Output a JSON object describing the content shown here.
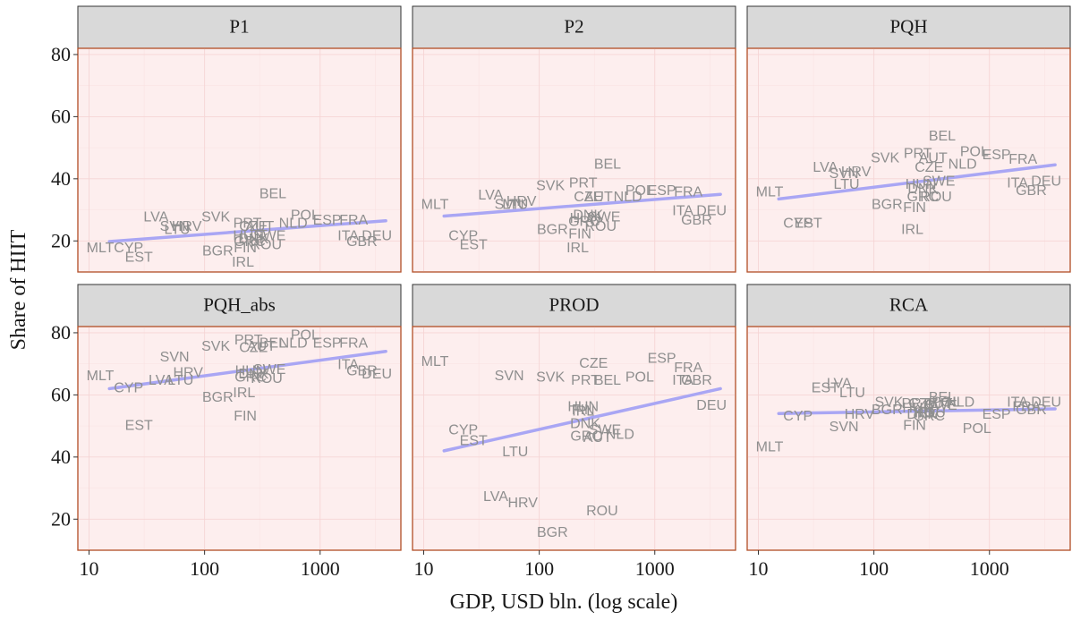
{
  "chart_data": {
    "type": "scatter",
    "layout": "facet-grid-2x3",
    "xlabel": "GDP, USD bln. (log scale)",
    "ylabel": "Share of HIIT",
    "x_scale": "log10",
    "xlim": [
      8,
      5000
    ],
    "ylim": [
      10,
      82
    ],
    "x_ticks": [
      10,
      100,
      1000
    ],
    "x_tick_labels": [
      "10",
      "100",
      "1000"
    ],
    "y_ticks": [
      20,
      40,
      60,
      80
    ],
    "y_tick_labels": [
      "20",
      "40",
      "60",
      "80"
    ],
    "grid": true,
    "point_style": "text-label",
    "panels": [
      {
        "facet": "P1",
        "trend": {
          "x": [
            15,
            3700
          ],
          "y": [
            19.8,
            26.5
          ]
        },
        "points": [
          {
            "label": "MLT",
            "x": 12.5,
            "y": 17.5
          },
          {
            "label": "CYP",
            "x": 22,
            "y": 17.5
          },
          {
            "label": "EST",
            "x": 27,
            "y": 14.5
          },
          {
            "label": "LVA",
            "x": 38,
            "y": 27.5
          },
          {
            "label": "SVN",
            "x": 55,
            "y": 24.5
          },
          {
            "label": "HRV",
            "x": 70,
            "y": 24.5
          },
          {
            "label": "LTU",
            "x": 58,
            "y": 23.5
          },
          {
            "label": "SVK",
            "x": 125,
            "y": 27.5
          },
          {
            "label": "BGR",
            "x": 130,
            "y": 16.5
          },
          {
            "label": "PRT",
            "x": 235,
            "y": 25.5
          },
          {
            "label": "CZE",
            "x": 265,
            "y": 24.5
          },
          {
            "label": "AUT",
            "x": 300,
            "y": 24.5
          },
          {
            "label": "HUN",
            "x": 240,
            "y": 21.5
          },
          {
            "label": "DNK",
            "x": 265,
            "y": 20.5
          },
          {
            "label": "GRC",
            "x": 245,
            "y": 19.5
          },
          {
            "label": "FIN",
            "x": 225,
            "y": 17.5
          },
          {
            "label": "IRL",
            "x": 215,
            "y": 13
          },
          {
            "label": "SWE",
            "x": 365,
            "y": 21.5
          },
          {
            "label": "ROU",
            "x": 340,
            "y": 18.5
          },
          {
            "label": "BEL",
            "x": 390,
            "y": 35
          },
          {
            "label": "NLD",
            "x": 585,
            "y": 25.5
          },
          {
            "label": "POL",
            "x": 740,
            "y": 28
          },
          {
            "label": "ESP",
            "x": 1150,
            "y": 26.5
          },
          {
            "label": "FRA",
            "x": 1950,
            "y": 26.5
          },
          {
            "label": "ITA",
            "x": 1750,
            "y": 21.5
          },
          {
            "label": "DEU",
            "x": 3100,
            "y": 21.5
          },
          {
            "label": "GBR",
            "x": 2300,
            "y": 19.5
          }
        ]
      },
      {
        "facet": "P2",
        "trend": {
          "x": [
            15,
            3700
          ],
          "y": [
            28,
            35
          ]
        },
        "points": [
          {
            "label": "MLT",
            "x": 12.5,
            "y": 31.5
          },
          {
            "label": "CYP",
            "x": 22,
            "y": 21.5
          },
          {
            "label": "EST",
            "x": 27,
            "y": 18.5
          },
          {
            "label": "LVA",
            "x": 38,
            "y": 34.5
          },
          {
            "label": "SVN",
            "x": 55,
            "y": 31.5
          },
          {
            "label": "HRV",
            "x": 70,
            "y": 32.5
          },
          {
            "label": "LTU",
            "x": 62,
            "y": 31.5
          },
          {
            "label": "SVK",
            "x": 125,
            "y": 37.5
          },
          {
            "label": "PRT",
            "x": 240,
            "y": 38.5
          },
          {
            "label": "BEL",
            "x": 390,
            "y": 44.5
          },
          {
            "label": "CZE",
            "x": 265,
            "y": 34
          },
          {
            "label": "AUT",
            "x": 325,
            "y": 34
          },
          {
            "label": "NLD",
            "x": 585,
            "y": 34
          },
          {
            "label": "POL",
            "x": 740,
            "y": 36
          },
          {
            "label": "ESP",
            "x": 1150,
            "y": 36
          },
          {
            "label": "FRA",
            "x": 1950,
            "y": 35.5
          },
          {
            "label": "BGR",
            "x": 130,
            "y": 23.5
          },
          {
            "label": "DNK",
            "x": 265,
            "y": 28
          },
          {
            "label": "HUN",
            "x": 250,
            "y": 27
          },
          {
            "label": "GRC",
            "x": 245,
            "y": 26
          },
          {
            "label": "SWE",
            "x": 365,
            "y": 27.5
          },
          {
            "label": "ROU",
            "x": 340,
            "y": 24.5
          },
          {
            "label": "FIN",
            "x": 225,
            "y": 22
          },
          {
            "label": "IRL",
            "x": 215,
            "y": 17.5
          },
          {
            "label": "ITA",
            "x": 1750,
            "y": 29.5
          },
          {
            "label": "DEU",
            "x": 3100,
            "y": 29.5
          },
          {
            "label": "GBR",
            "x": 2300,
            "y": 26.5
          }
        ]
      },
      {
        "facet": "PQH",
        "trend": {
          "x": [
            15,
            3700
          ],
          "y": [
            33.5,
            44.5
          ]
        },
        "points": [
          {
            "label": "MLT",
            "x": 12.5,
            "y": 35.5
          },
          {
            "label": "CYP",
            "x": 22,
            "y": 25.5
          },
          {
            "label": "EST",
            "x": 27,
            "y": 25.5
          },
          {
            "label": "LVA",
            "x": 38,
            "y": 43.5
          },
          {
            "label": "SVN",
            "x": 55,
            "y": 41.5
          },
          {
            "label": "HRV",
            "x": 70,
            "y": 42
          },
          {
            "label": "LTU",
            "x": 58,
            "y": 38
          },
          {
            "label": "SVK",
            "x": 125,
            "y": 46.5
          },
          {
            "label": "PRT",
            "x": 240,
            "y": 48
          },
          {
            "label": "AUT",
            "x": 325,
            "y": 46.5
          },
          {
            "label": "BEL",
            "x": 390,
            "y": 53.5
          },
          {
            "label": "CZE",
            "x": 300,
            "y": 43.5
          },
          {
            "label": "NLD",
            "x": 585,
            "y": 44.5
          },
          {
            "label": "POL",
            "x": 740,
            "y": 48.5
          },
          {
            "label": "ESP",
            "x": 1150,
            "y": 47.5
          },
          {
            "label": "FRA",
            "x": 1950,
            "y": 46
          },
          {
            "label": "HUN",
            "x": 255,
            "y": 38
          },
          {
            "label": "SWE",
            "x": 365,
            "y": 39
          },
          {
            "label": "DNK",
            "x": 265,
            "y": 36.5
          },
          {
            "label": "GRC",
            "x": 265,
            "y": 34
          },
          {
            "label": "ROU",
            "x": 345,
            "y": 34
          },
          {
            "label": "BGR",
            "x": 130,
            "y": 31.5
          },
          {
            "label": "FIN",
            "x": 225,
            "y": 30.5
          },
          {
            "label": "IRL",
            "x": 215,
            "y": 23.5
          },
          {
            "label": "ITA",
            "x": 1750,
            "y": 38.5
          },
          {
            "label": "DEU",
            "x": 3100,
            "y": 39
          },
          {
            "label": "GBR",
            "x": 2300,
            "y": 36
          }
        ]
      },
      {
        "facet": "PQH_abs",
        "trend": {
          "x": [
            15,
            3700
          ],
          "y": [
            62,
            74
          ]
        },
        "points": [
          {
            "label": "MLT",
            "x": 12.5,
            "y": 66
          },
          {
            "label": "CYP",
            "x": 22,
            "y": 62
          },
          {
            "label": "EST",
            "x": 27,
            "y": 50
          },
          {
            "label": "SVN",
            "x": 55,
            "y": 72
          },
          {
            "label": "LVA",
            "x": 42,
            "y": 64.5
          },
          {
            "label": "LTU",
            "x": 62,
            "y": 64.5
          },
          {
            "label": "HRV",
            "x": 72,
            "y": 67
          },
          {
            "label": "BGR",
            "x": 130,
            "y": 59
          },
          {
            "label": "SVK",
            "x": 125,
            "y": 75.5
          },
          {
            "label": "PRT",
            "x": 240,
            "y": 77.5
          },
          {
            "label": "CZE",
            "x": 265,
            "y": 75
          },
          {
            "label": "AUT",
            "x": 310,
            "y": 75.5
          },
          {
            "label": "BEL",
            "x": 390,
            "y": 76.5
          },
          {
            "label": "NLD",
            "x": 585,
            "y": 76.5
          },
          {
            "label": "POL",
            "x": 740,
            "y": 79
          },
          {
            "label": "ESP",
            "x": 1150,
            "y": 76.5
          },
          {
            "label": "FRA",
            "x": 1950,
            "y": 76.5
          },
          {
            "label": "HUN",
            "x": 250,
            "y": 67.5
          },
          {
            "label": "DNK",
            "x": 265,
            "y": 66.5
          },
          {
            "label": "SWE",
            "x": 365,
            "y": 68
          },
          {
            "label": "GRC",
            "x": 250,
            "y": 65.5
          },
          {
            "label": "ROU",
            "x": 345,
            "y": 65
          },
          {
            "label": "IRL",
            "x": 220,
            "y": 60.5
          },
          {
            "label": "FIN",
            "x": 225,
            "y": 53
          },
          {
            "label": "ITA",
            "x": 1750,
            "y": 69.5
          },
          {
            "label": "GBR",
            "x": 2300,
            "y": 67.5
          },
          {
            "label": "DEU",
            "x": 3100,
            "y": 66.5
          }
        ]
      },
      {
        "facet": "PROD",
        "trend": {
          "x": [
            15,
            3700
          ],
          "y": [
            42,
            62
          ]
        },
        "points": [
          {
            "label": "MLT",
            "x": 12.5,
            "y": 70.5
          },
          {
            "label": "CYP",
            "x": 22,
            "y": 48.5
          },
          {
            "label": "EST",
            "x": 27,
            "y": 45
          },
          {
            "label": "LTU",
            "x": 62,
            "y": 41.5
          },
          {
            "label": "LVA",
            "x": 42,
            "y": 27
          },
          {
            "label": "HRV",
            "x": 72,
            "y": 25
          },
          {
            "label": "BGR",
            "x": 130,
            "y": 15.5
          },
          {
            "label": "ROU",
            "x": 350,
            "y": 22.5
          },
          {
            "label": "SVN",
            "x": 55,
            "y": 66
          },
          {
            "label": "SVK",
            "x": 125,
            "y": 65.5
          },
          {
            "label": "CZE",
            "x": 295,
            "y": 70
          },
          {
            "label": "PRT",
            "x": 250,
            "y": 64.5
          },
          {
            "label": "BEL",
            "x": 390,
            "y": 64.5
          },
          {
            "label": "POL",
            "x": 740,
            "y": 65.5
          },
          {
            "label": "ESP",
            "x": 1150,
            "y": 71.5
          },
          {
            "label": "FRA",
            "x": 1950,
            "y": 68.5
          },
          {
            "label": "ITA",
            "x": 1750,
            "y": 64.5
          },
          {
            "label": "GBR",
            "x": 2300,
            "y": 64.5
          },
          {
            "label": "DEU",
            "x": 3100,
            "y": 56.5
          },
          {
            "label": "HUN",
            "x": 240,
            "y": 56
          },
          {
            "label": "FIN",
            "x": 240,
            "y": 55
          },
          {
            "label": "IRL",
            "x": 240,
            "y": 54.5
          },
          {
            "label": "DNK",
            "x": 250,
            "y": 50.5
          },
          {
            "label": "SWE",
            "x": 370,
            "y": 48.5
          },
          {
            "label": "NLD",
            "x": 500,
            "y": 47
          },
          {
            "label": "GRC",
            "x": 255,
            "y": 46.5
          },
          {
            "label": "AUT",
            "x": 320,
            "y": 46
          }
        ]
      },
      {
        "facet": "RCA",
        "trend": {
          "x": [
            15,
            3700
          ],
          "y": [
            54,
            55.5
          ]
        },
        "points": [
          {
            "label": "MLT",
            "x": 12.5,
            "y": 43
          },
          {
            "label": "CYP",
            "x": 22,
            "y": 53
          },
          {
            "label": "EST",
            "x": 38,
            "y": 62
          },
          {
            "label": "LVA",
            "x": 50,
            "y": 63.5
          },
          {
            "label": "LTU",
            "x": 65,
            "y": 60.5
          },
          {
            "label": "SVN",
            "x": 55,
            "y": 49.5
          },
          {
            "label": "HRV",
            "x": 75,
            "y": 53.5
          },
          {
            "label": "BGR",
            "x": 130,
            "y": 55
          },
          {
            "label": "SVK",
            "x": 135,
            "y": 57.5
          },
          {
            "label": "PRT",
            "x": 230,
            "y": 57
          },
          {
            "label": "CZE",
            "x": 265,
            "y": 57
          },
          {
            "label": "HUN",
            "x": 240,
            "y": 55.5
          },
          {
            "label": "IRL",
            "x": 280,
            "y": 54
          },
          {
            "label": "ROU",
            "x": 305,
            "y": 54
          },
          {
            "label": "DNK",
            "x": 260,
            "y": 53.5
          },
          {
            "label": "GRC",
            "x": 300,
            "y": 53
          },
          {
            "label": "FIN",
            "x": 225,
            "y": 50
          },
          {
            "label": "BEL",
            "x": 390,
            "y": 59
          },
          {
            "label": "AUT",
            "x": 360,
            "y": 57
          },
          {
            "label": "SWE",
            "x": 380,
            "y": 56.5
          },
          {
            "label": "POL",
            "x": 420,
            "y": 57.5
          },
          {
            "label": "NLD",
            "x": 560,
            "y": 57.5
          },
          {
            "label": "ESP",
            "x": 1150,
            "y": 53.5
          },
          {
            "label": "POL",
            "x": 780,
            "y": 49
          },
          {
            "label": "ITA",
            "x": 1750,
            "y": 57.5
          },
          {
            "label": "FRA",
            "x": 2100,
            "y": 56
          },
          {
            "label": "GBR",
            "x": 2300,
            "y": 55
          },
          {
            "label": "DEU",
            "x": 3100,
            "y": 57.5
          }
        ]
      }
    ]
  },
  "colors": {
    "panel_fill": "#fdeeee",
    "panel_border": "#b5552f",
    "strip_fill": "#d9d9d9",
    "label_color": "#8f8f8f",
    "trend_color": "#a9a6f4"
  }
}
